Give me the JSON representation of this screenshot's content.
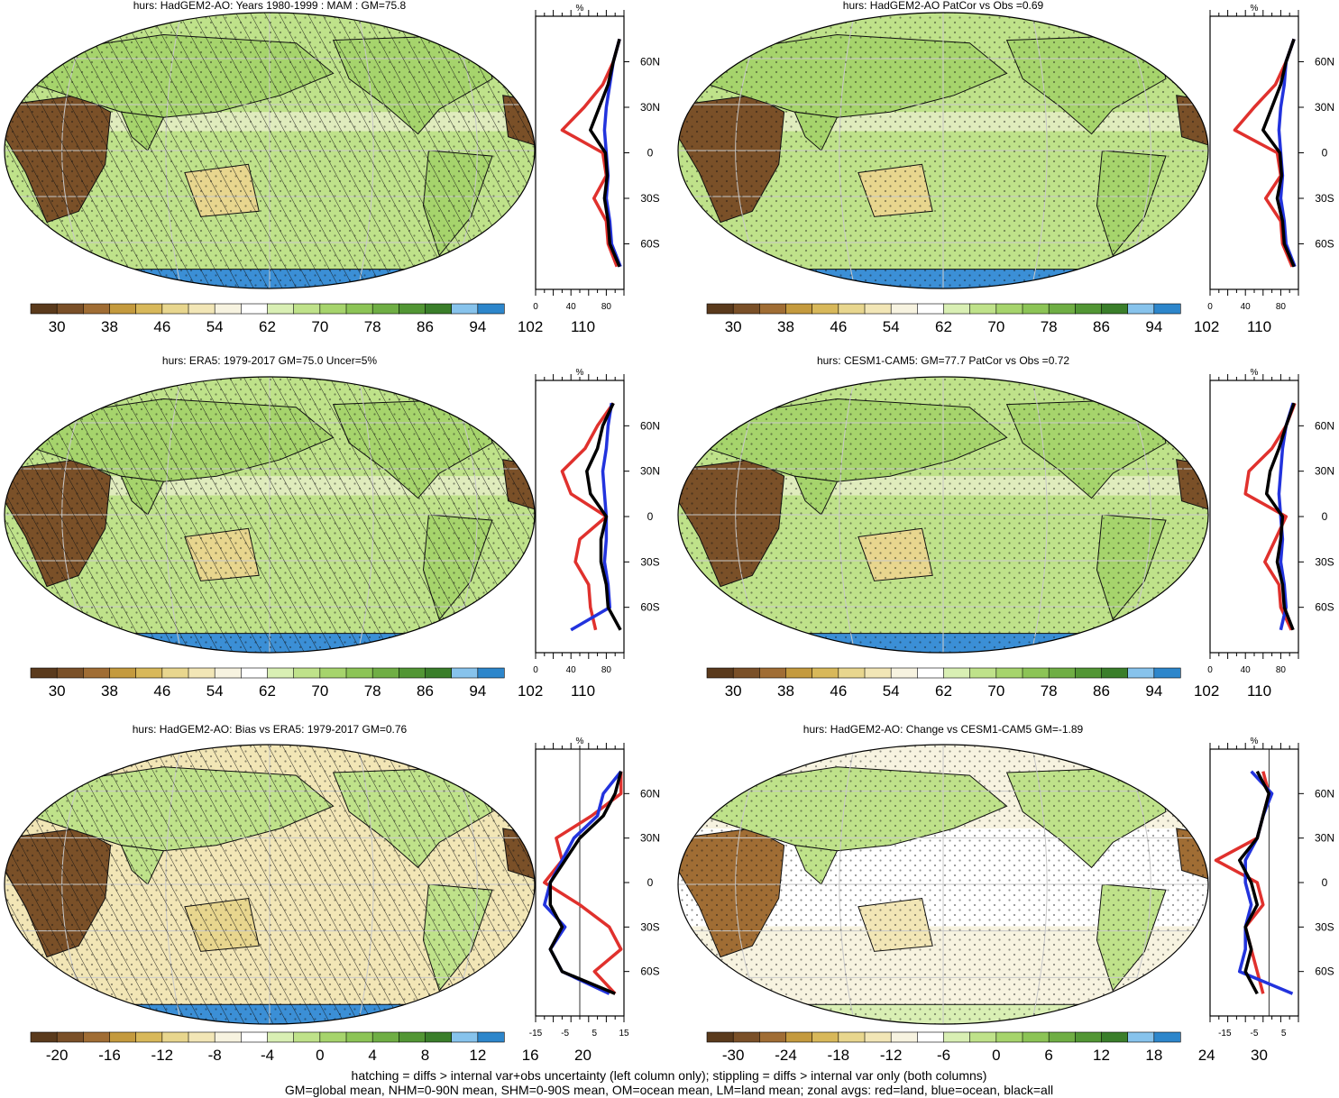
{
  "colors": {
    "scale": [
      "#5a3a1c",
      "#7a5028",
      "#a06d34",
      "#c49a3e",
      "#d8b85a",
      "#e8d68e",
      "#f2e6b6",
      "#f7f3e0",
      "#ffffff",
      "#d9efb4",
      "#bfe28a",
      "#a6d46c",
      "#8cc456",
      "#6fae44",
      "#529634",
      "#3a7e2a",
      "#87c3ec",
      "#2d86cb"
    ],
    "land": "#e0312d",
    "ocean": "#2233dd",
    "all": "#000000",
    "antarctic": "#3b8fd6"
  },
  "panels": [
    {
      "title": "hurs: HadGEM2-AO: Years 1980-1999 : MAM : GM=75.8",
      "map": "abs",
      "cb_labels": [
        "30",
        "38",
        "46",
        "54",
        "62",
        "70",
        "78",
        "86",
        "94",
        "102",
        "110"
      ],
      "zonal_xticks": [
        "0",
        "40",
        "80"
      ],
      "zonal_unit": "%"
    },
    {
      "title": "hurs: HadGEM2-AO PatCor vs Obs =0.69",
      "map": "abs",
      "cb_labels": [
        "30",
        "38",
        "46",
        "54",
        "62",
        "70",
        "78",
        "86",
        "94",
        "102",
        "110"
      ],
      "zonal_xticks": [
        "0",
        "40",
        "80"
      ],
      "zonal_unit": "%"
    },
    {
      "title": "hurs: ERA5: 1979-2017 GM=75.0 Uncer=5%",
      "map": "abs",
      "cb_labels": [
        "30",
        "38",
        "46",
        "54",
        "62",
        "70",
        "78",
        "86",
        "94",
        "102",
        "110"
      ],
      "zonal_xticks": [
        "0",
        "40",
        "80"
      ],
      "zonal_unit": "%"
    },
    {
      "title": "hurs: CESM1-CAM5: GM=77.7 PatCor vs Obs =0.72",
      "map": "abs",
      "cb_labels": [
        "30",
        "38",
        "46",
        "54",
        "62",
        "70",
        "78",
        "86",
        "94",
        "102",
        "110"
      ],
      "zonal_xticks": [
        "0",
        "40",
        "80"
      ],
      "zonal_unit": "%"
    },
    {
      "title": "hurs: HadGEM2-AO: Bias vs ERA5: 1979-2017 GM=0.76",
      "map": "bias",
      "cb_labels": [
        "-20",
        "-16",
        "-12",
        "-8",
        "-4",
        "0",
        "4",
        "8",
        "12",
        "16",
        "20"
      ],
      "zonal_xticks": [
        "-15",
        "-5",
        "5",
        "15"
      ],
      "zonal_unit": "%"
    },
    {
      "title": "hurs: HadGEM2-AO: Change vs CESM1-CAM5 GM=-1.89",
      "map": "change",
      "cb_labels": [
        "-30",
        "-24",
        "-18",
        "-12",
        "-6",
        "0",
        "6",
        "12",
        "18",
        "24",
        "30"
      ],
      "zonal_xticks": [
        "-15",
        "-5",
        "5"
      ],
      "zonal_unit": "%"
    }
  ],
  "lat_labels": [
    "60N",
    "30N",
    "0",
    "30S",
    "60S"
  ],
  "footer": {
    "line1": "hatching = diffs > internal var+obs uncertainty (left column only); stippling = diffs > internal var only (both columns)",
    "line2": "GM=global mean, NHM=0-90N mean, SHM=0-90S mean, OM=ocean mean, LM=land mean; zonal avgs: red=land, blue=ocean, black=all"
  },
  "chart_data": [
    {
      "type": "line",
      "panel": 1,
      "xlim": [
        0,
        100
      ],
      "ylim": [
        -90,
        90
      ],
      "lat": [
        -75,
        -60,
        -45,
        -30,
        -15,
        0,
        15,
        30,
        45,
        60,
        75
      ],
      "series": [
        {
          "color": "red",
          "values": [
            92,
            82,
            80,
            66,
            80,
            76,
            30,
            55,
            76,
            88,
            95
          ]
        },
        {
          "color": "blue",
          "values": [
            96,
            86,
            84,
            80,
            82,
            80,
            78,
            80,
            84,
            88,
            95
          ]
        },
        {
          "color": "black",
          "values": [
            95,
            84,
            82,
            78,
            81,
            79,
            62,
            72,
            82,
            88,
            95
          ]
        }
      ]
    },
    {
      "type": "line",
      "panel": 2,
      "xlim": [
        0,
        100
      ],
      "ylim": [
        -90,
        90
      ],
      "lat": [
        -75,
        -60,
        -45,
        -30,
        -15,
        0,
        15,
        30,
        45,
        60,
        75
      ],
      "series": [
        {
          "color": "red",
          "values": [
            93,
            82,
            80,
            63,
            80,
            76,
            28,
            50,
            74,
            86,
            95
          ]
        },
        {
          "color": "blue",
          "values": [
            96,
            86,
            84,
            80,
            82,
            80,
            78,
            80,
            84,
            86,
            95
          ]
        },
        {
          "color": "black",
          "values": [
            95,
            84,
            82,
            76,
            81,
            79,
            60,
            70,
            80,
            86,
            95
          ]
        }
      ]
    },
    {
      "type": "line",
      "panel": 3,
      "xlim": [
        0,
        100
      ],
      "ylim": [
        -90,
        90
      ],
      "lat": [
        -75,
        -60,
        -45,
        -30,
        -15,
        0,
        15,
        30,
        45,
        60,
        75
      ],
      "series": [
        {
          "color": "red",
          "values": [
            68,
            62,
            60,
            45,
            50,
            80,
            40,
            30,
            56,
            70,
            88
          ]
        },
        {
          "color": "blue",
          "values": [
            40,
            84,
            82,
            78,
            80,
            80,
            78,
            76,
            80,
            82,
            86
          ]
        },
        {
          "color": "black",
          "values": [
            96,
            82,
            80,
            74,
            74,
            80,
            62,
            58,
            70,
            76,
            88
          ]
        }
      ]
    },
    {
      "type": "line",
      "panel": 4,
      "xlim": [
        0,
        100
      ],
      "ylim": [
        -90,
        90
      ],
      "lat": [
        -75,
        -60,
        -45,
        -30,
        -15,
        0,
        15,
        30,
        45,
        60,
        75
      ],
      "series": [
        {
          "color": "red",
          "values": [
            92,
            80,
            78,
            62,
            74,
            86,
            40,
            44,
            70,
            86,
            96
          ]
        },
        {
          "color": "blue",
          "values": [
            80,
            86,
            84,
            80,
            82,
            80,
            78,
            80,
            82,
            86,
            94
          ]
        },
        {
          "color": "black",
          "values": [
            94,
            84,
            82,
            76,
            80,
            82,
            64,
            68,
            78,
            86,
            95
          ]
        }
      ]
    },
    {
      "type": "line",
      "panel": 5,
      "xlim": [
        -15,
        15
      ],
      "ylim": [
        -90,
        90
      ],
      "lat": [
        -75,
        -60,
        -45,
        -30,
        -15,
        0,
        15,
        30,
        45,
        60,
        75
      ],
      "series": [
        {
          "color": "red",
          "values": [
            12,
            5,
            14,
            10,
            0,
            -12,
            -6,
            -8,
            4,
            14,
            14
          ]
        },
        {
          "color": "blue",
          "values": [
            10,
            -6,
            -10,
            -5,
            -12,
            -10,
            -6,
            -2,
            6,
            8,
            14
          ]
        },
        {
          "color": "black",
          "values": [
            12,
            -6,
            -10,
            -6,
            -10,
            -10,
            -5,
            0,
            8,
            12,
            14
          ]
        }
      ]
    },
    {
      "type": "line",
      "panel": 6,
      "xlim": [
        -20,
        10
      ],
      "ylim": [
        -90,
        90
      ],
      "lat": [
        -75,
        -60,
        -45,
        -30,
        -15,
        0,
        15,
        30,
        45,
        60,
        75
      ],
      "series": [
        {
          "color": "red",
          "values": [
            -2,
            -4,
            -6,
            -8,
            -2,
            -4,
            -18,
            -4,
            -2,
            0,
            -2
          ]
        },
        {
          "color": "blue",
          "values": [
            8,
            -10,
            -8,
            -8,
            -6,
            -8,
            -8,
            -4,
            -2,
            1,
            -6
          ]
        },
        {
          "color": "black",
          "values": [
            -4,
            -8,
            -6,
            -8,
            -4,
            -6,
            -10,
            -4,
            -2,
            0,
            -4
          ]
        }
      ]
    }
  ]
}
